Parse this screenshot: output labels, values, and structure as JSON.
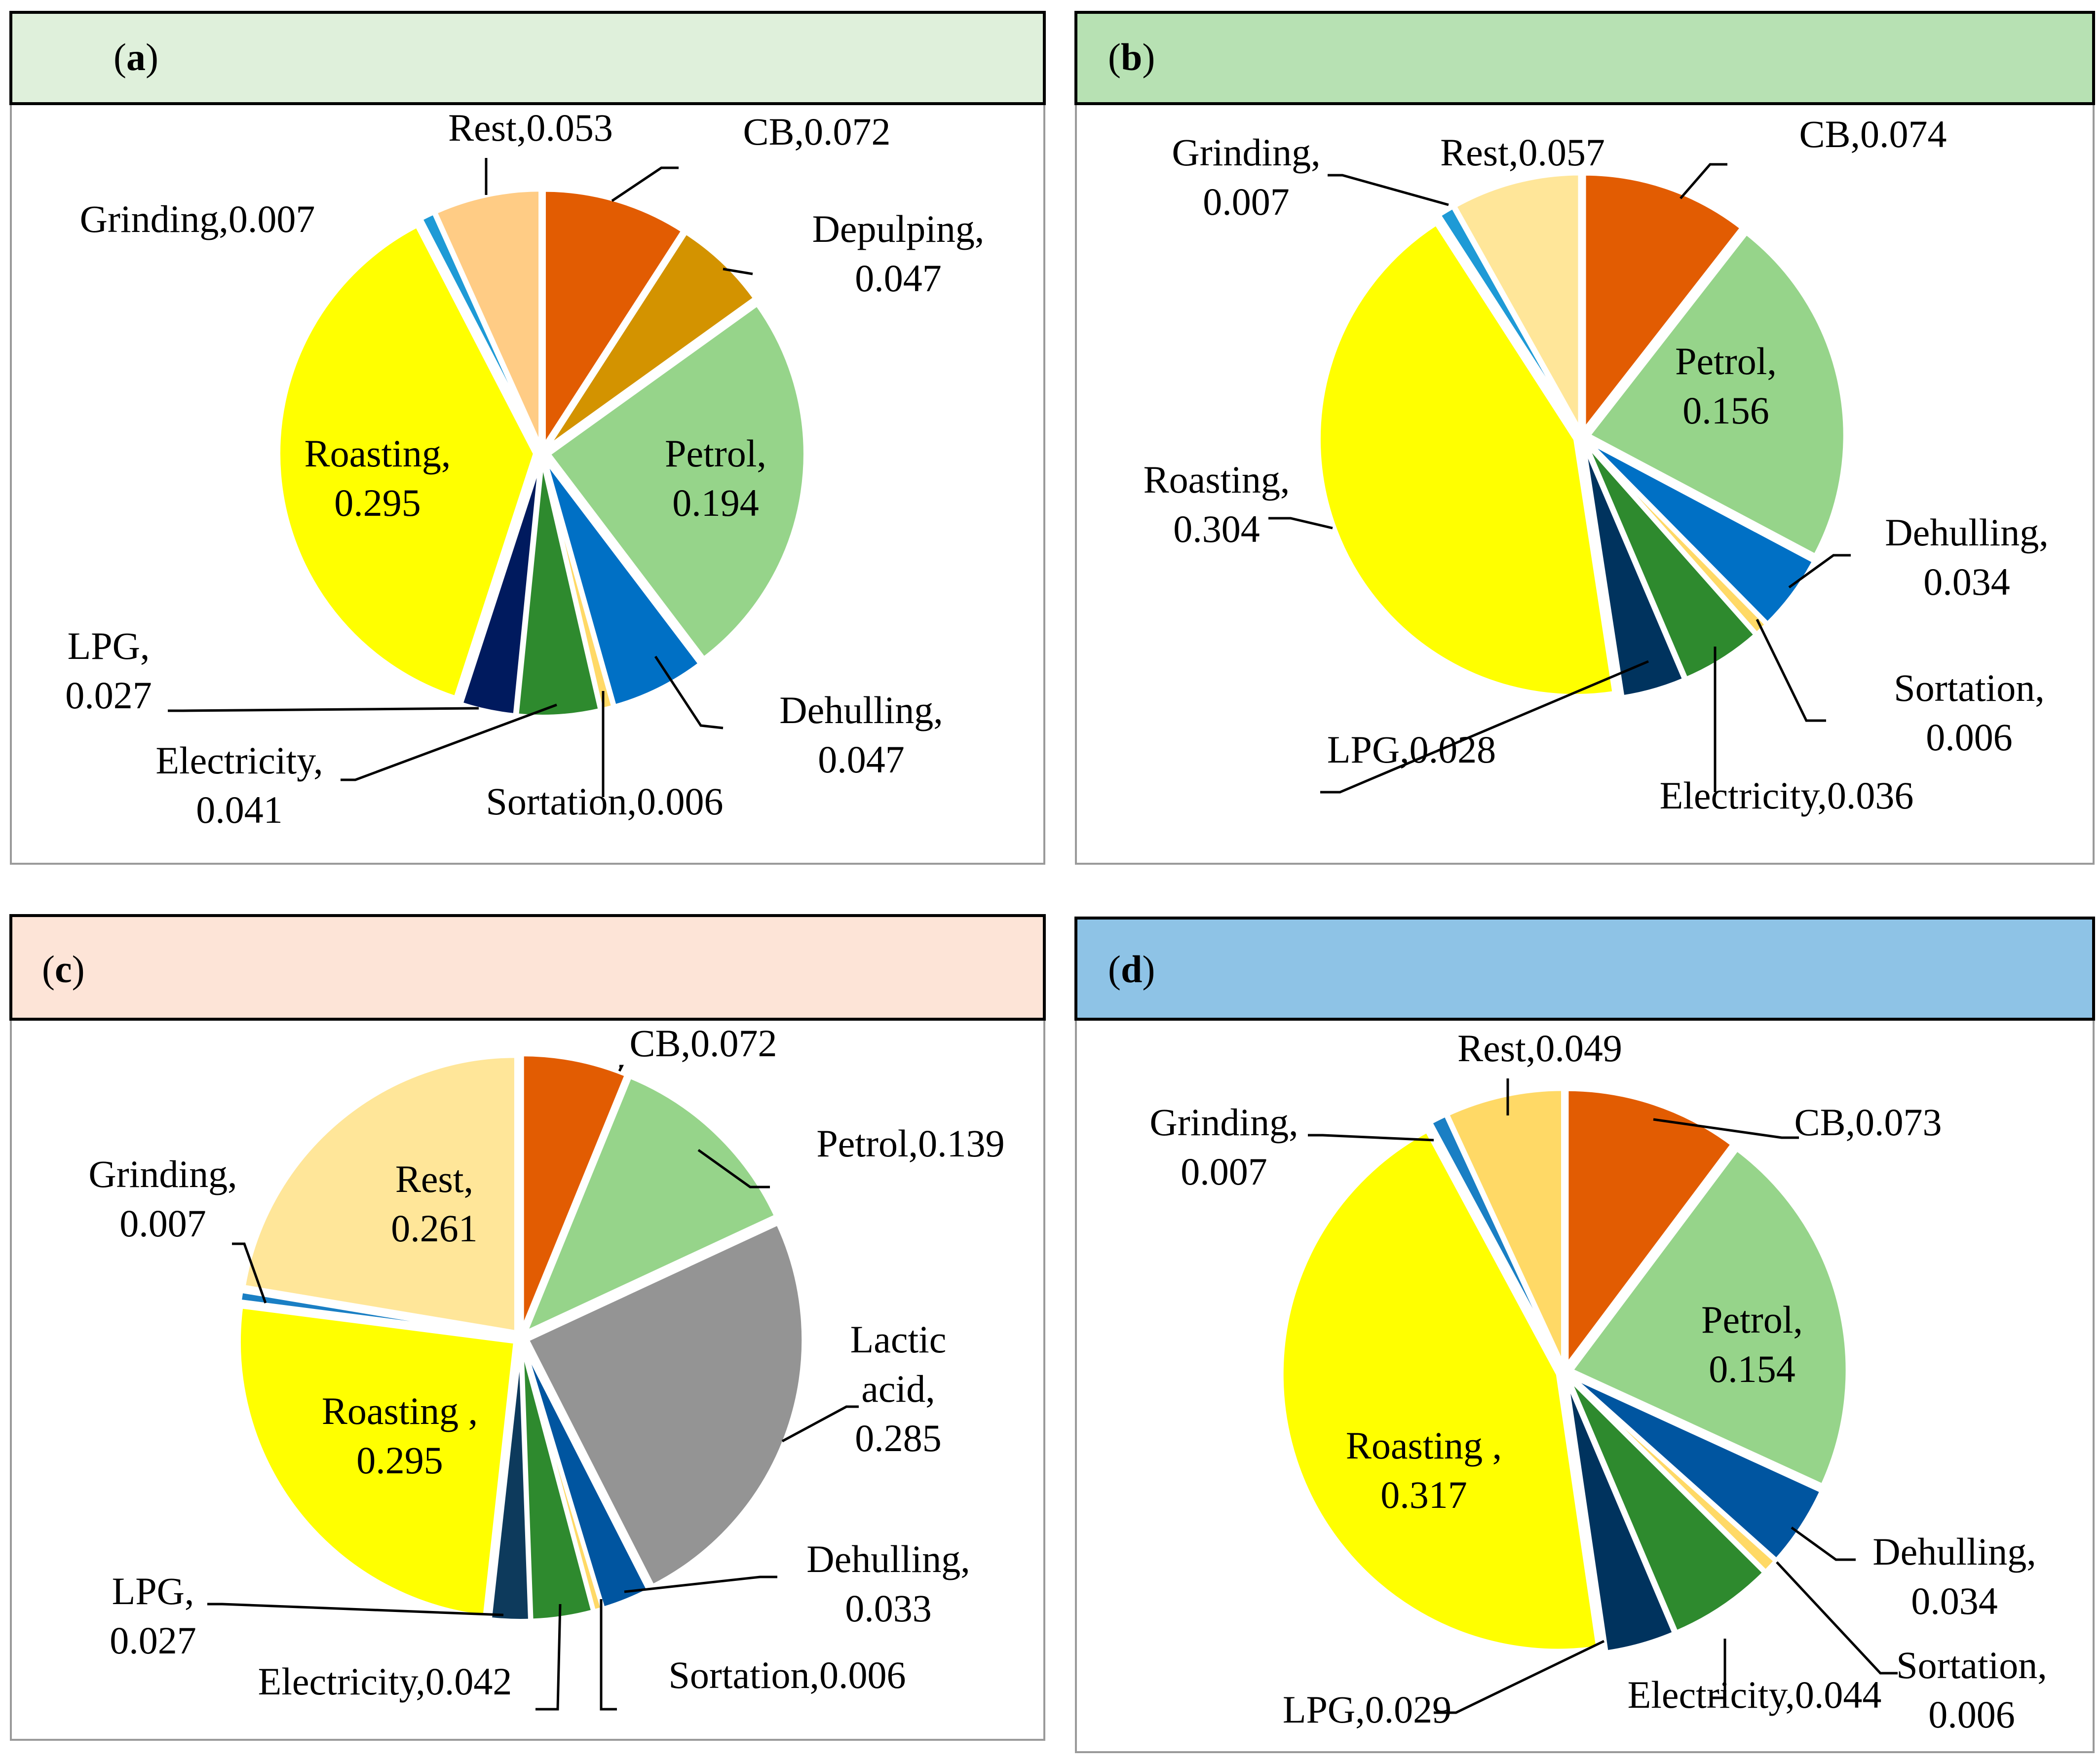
{
  "panels": [
    {
      "label": "(a)",
      "letter": "a",
      "header_color": "#dff0db"
    },
    {
      "label": "(b)",
      "letter": "b",
      "header_color": "#b7e1b3"
    },
    {
      "label": "(c)",
      "letter": "c",
      "header_color": "#fde4d7"
    },
    {
      "label": "(d)",
      "letter": "d",
      "header_color": "#8ec3e6"
    }
  ],
  "chart_data": [
    {
      "type": "pie",
      "panel": "(a)",
      "slices": [
        {
          "name": "CB",
          "value": 0.072,
          "label_lines": [
            "CB,0.072"
          ],
          "color": "#e25c02"
        },
        {
          "name": "Depulping",
          "value": 0.047,
          "label_lines": [
            "Depulping,",
            "0.047"
          ],
          "color": "#d39300"
        },
        {
          "name": "Petrol",
          "value": 0.194,
          "label_lines": [
            "Petrol,",
            "0.194"
          ],
          "color": "#96d48a"
        },
        {
          "name": "Dehulling",
          "value": 0.047,
          "label_lines": [
            "Dehulling,",
            "0.047"
          ],
          "color": "#0070c5"
        },
        {
          "name": "Sortation",
          "value": 0.006,
          "label_lines": [
            "Sortation,0.006"
          ],
          "color": "#ffd966"
        },
        {
          "name": "Electricity",
          "value": 0.041,
          "label_lines": [
            "Electricity,",
            "0.041"
          ],
          "color": "#2e8a2e"
        },
        {
          "name": "LPG",
          "value": 0.027,
          "label_lines": [
            "LPG,",
            "0.027"
          ],
          "color": "#001a5e"
        },
        {
          "name": "Roasting",
          "value": 0.295,
          "label_lines": [
            "Roasting,",
            "0.295"
          ],
          "color": "#ffff00"
        },
        {
          "name": "Grinding",
          "value": 0.007,
          "label_lines": [
            "Grinding,0.007"
          ],
          "color": "#1e9ad6"
        },
        {
          "name": "Rest",
          "value": 0.053,
          "label_lines": [
            "Rest,0.053"
          ],
          "color": "#ffcc85"
        }
      ]
    },
    {
      "type": "pie",
      "panel": "(b)",
      "slices": [
        {
          "name": "CB",
          "value": 0.074,
          "label_lines": [
            "CB,0.074"
          ],
          "color": "#e25c02"
        },
        {
          "name": "Petrol",
          "value": 0.156,
          "label_lines": [
            "Petrol,",
            "0.156"
          ],
          "color": "#96d48a"
        },
        {
          "name": "Dehulling",
          "value": 0.034,
          "label_lines": [
            "Dehulling,",
            "0.034"
          ],
          "color": "#0070c5"
        },
        {
          "name": "Sortation",
          "value": 0.006,
          "label_lines": [
            "Sortation,",
            "0.006"
          ],
          "color": "#ffd966"
        },
        {
          "name": "Electricity",
          "value": 0.036,
          "label_lines": [
            "Electricity,0.036"
          ],
          "color": "#2e8a2e"
        },
        {
          "name": "LPG",
          "value": 0.028,
          "label_lines": [
            "LPG,0.028"
          ],
          "color": "#00335e"
        },
        {
          "name": "Roasting",
          "value": 0.304,
          "label_lines": [
            "Roasting,",
            "0.304"
          ],
          "color": "#ffff00"
        },
        {
          "name": "Grinding",
          "value": 0.007,
          "label_lines": [
            "Grinding,",
            "0.007"
          ],
          "color": "#1e9ad6"
        },
        {
          "name": "Rest",
          "value": 0.057,
          "label_lines": [
            "Rest,0.057"
          ],
          "color": "#ffe699"
        }
      ]
    },
    {
      "type": "pie",
      "panel": "(c)",
      "slices": [
        {
          "name": "CB",
          "value": 0.072,
          "label_lines": [
            "CB,0.072"
          ],
          "color": "#e25c02"
        },
        {
          "name": "Petrol",
          "value": 0.139,
          "label_lines": [
            "Petrol,0.139"
          ],
          "color": "#96d48a"
        },
        {
          "name": "Lactic acid",
          "value": 0.285,
          "label_lines": [
            "Lactic",
            "acid,",
            "0.285"
          ],
          "color": "#949494"
        },
        {
          "name": "Dehulling",
          "value": 0.033,
          "label_lines": [
            "Dehulling,",
            "0.033"
          ],
          "color": "#0055a0"
        },
        {
          "name": "Sortation",
          "value": 0.006,
          "label_lines": [
            "Sortation,0.006"
          ],
          "color": "#ffd966"
        },
        {
          "name": "Electricity",
          "value": 0.042,
          "label_lines": [
            "Electricity,0.042"
          ],
          "color": "#2e8a2e"
        },
        {
          "name": "LPG",
          "value": 0.027,
          "label_lines": [
            "LPG,",
            "0.027"
          ],
          "color": "#0d3a5c"
        },
        {
          "name": "Roasting",
          "value": 0.295,
          "label_lines": [
            "Roasting ,",
            "0.295"
          ],
          "color": "#ffff00"
        },
        {
          "name": "Grinding",
          "value": 0.007,
          "label_lines": [
            "Grinding,",
            "0.007"
          ],
          "color": "#1a7fc4"
        },
        {
          "name": "Rest",
          "value": 0.261,
          "label_lines": [
            "Rest,",
            "0.261"
          ],
          "color": "#ffe699"
        }
      ]
    },
    {
      "type": "pie",
      "panel": "(d)",
      "slices": [
        {
          "name": "CB",
          "value": 0.073,
          "label_lines": [
            "CB,0.073"
          ],
          "color": "#e25c02"
        },
        {
          "name": "Petrol",
          "value": 0.154,
          "label_lines": [
            "Petrol,",
            "0.154"
          ],
          "color": "#96d48a"
        },
        {
          "name": "Dehulling",
          "value": 0.034,
          "label_lines": [
            "Dehulling,",
            "0.034"
          ],
          "color": "#0055a0"
        },
        {
          "name": "Sortation",
          "value": 0.006,
          "label_lines": [
            "Sortation,",
            "0.006"
          ],
          "color": "#ffd966"
        },
        {
          "name": "Electricity",
          "value": 0.044,
          "label_lines": [
            "Electricity,0.044"
          ],
          "color": "#2e8a2e"
        },
        {
          "name": "LPG",
          "value": 0.029,
          "label_lines": [
            "LPG,0.029"
          ],
          "color": "#00335e"
        },
        {
          "name": "Roasting",
          "value": 0.317,
          "label_lines": [
            "Roasting ,",
            "0.317"
          ],
          "color": "#ffff00"
        },
        {
          "name": "Grinding",
          "value": 0.007,
          "label_lines": [
            "Grinding,",
            "0.007"
          ],
          "color": "#1a7fc4"
        },
        {
          "name": "Rest",
          "value": 0.049,
          "label_lines": [
            "Rest,0.049"
          ],
          "color": "#ffd966"
        }
      ]
    }
  ]
}
